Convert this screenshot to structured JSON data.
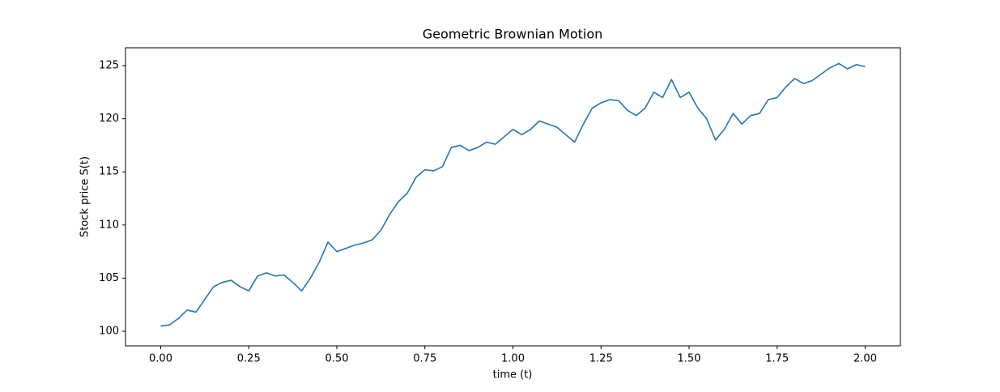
{
  "chart_data": {
    "type": "line",
    "title": "Geometric Brownian Motion",
    "xlabel": "time (t)",
    "ylabel": "Stock price S(t)",
    "x": [
      0,
      0.025,
      0.05,
      0.075,
      0.1,
      0.125,
      0.15,
      0.175,
      0.2,
      0.225,
      0.25,
      0.275,
      0.3,
      0.325,
      0.35,
      0.375,
      0.4,
      0.425,
      0.45,
      0.475,
      0.5,
      0.525,
      0.55,
      0.575,
      0.6,
      0.625,
      0.65,
      0.675,
      0.7,
      0.725,
      0.75,
      0.775,
      0.8,
      0.825,
      0.85,
      0.875,
      0.9,
      0.925,
      0.95,
      0.975,
      1.0,
      1.025,
      1.05,
      1.075,
      1.1,
      1.125,
      1.15,
      1.175,
      1.2,
      1.225,
      1.25,
      1.275,
      1.3,
      1.325,
      1.35,
      1.375,
      1.4,
      1.425,
      1.45,
      1.475,
      1.5,
      1.525,
      1.55,
      1.575,
      1.6,
      1.625,
      1.65,
      1.675,
      1.7,
      1.725,
      1.75,
      1.775,
      1.8,
      1.825,
      1.85,
      1.875,
      1.9,
      1.925,
      1.95,
      1.975,
      2.0
    ],
    "series": [
      {
        "color": "#1f77b4",
        "values": [
          100.5,
          100.6,
          101.2,
          102.0,
          101.8,
          103.0,
          104.2,
          104.6,
          104.8,
          104.2,
          103.8,
          105.2,
          105.5,
          105.2,
          105.3,
          104.6,
          103.8,
          105.0,
          106.5,
          108.4,
          107.5,
          107.8,
          108.1,
          108.3,
          108.6,
          109.5,
          111.0,
          112.2,
          113.0,
          114.5,
          115.2,
          115.1,
          115.5,
          117.3,
          117.5,
          117.0,
          117.3,
          117.8,
          117.6,
          118.3,
          119.0,
          118.5,
          119.0,
          119.8,
          119.5,
          119.2,
          118.5,
          117.8,
          119.5,
          121.0,
          121.5,
          121.8,
          121.7,
          120.8,
          120.3,
          121.0,
          122.5,
          122.0,
          123.7,
          122.0,
          122.5,
          121.0,
          120.0,
          118.0,
          119.0,
          120.5,
          119.5,
          120.3,
          120.5,
          121.8,
          122.0,
          123.0,
          123.8,
          123.3,
          123.6,
          124.2,
          124.8,
          125.2,
          124.7,
          125.1,
          124.9
        ]
      }
    ],
    "xlim": [
      -0.1,
      2.1
    ],
    "xticks": [
      {
        "value": 0,
        "label": "0.00"
      },
      {
        "value": 0.25,
        "label": "0.25"
      },
      {
        "value": 0.5,
        "label": "0.50"
      },
      {
        "value": 0.75,
        "label": "0.75"
      },
      {
        "value": 1.0,
        "label": "1.00"
      },
      {
        "value": 1.25,
        "label": "1.25"
      },
      {
        "value": 1.5,
        "label": "1.50"
      },
      {
        "value": 1.75,
        "label": "1.75"
      },
      {
        "value": 2.0,
        "label": "2.00"
      }
    ],
    "ylim": [
      98.63,
      126.68
    ],
    "yticks": [
      100,
      105,
      110,
      115,
      120,
      125
    ]
  }
}
